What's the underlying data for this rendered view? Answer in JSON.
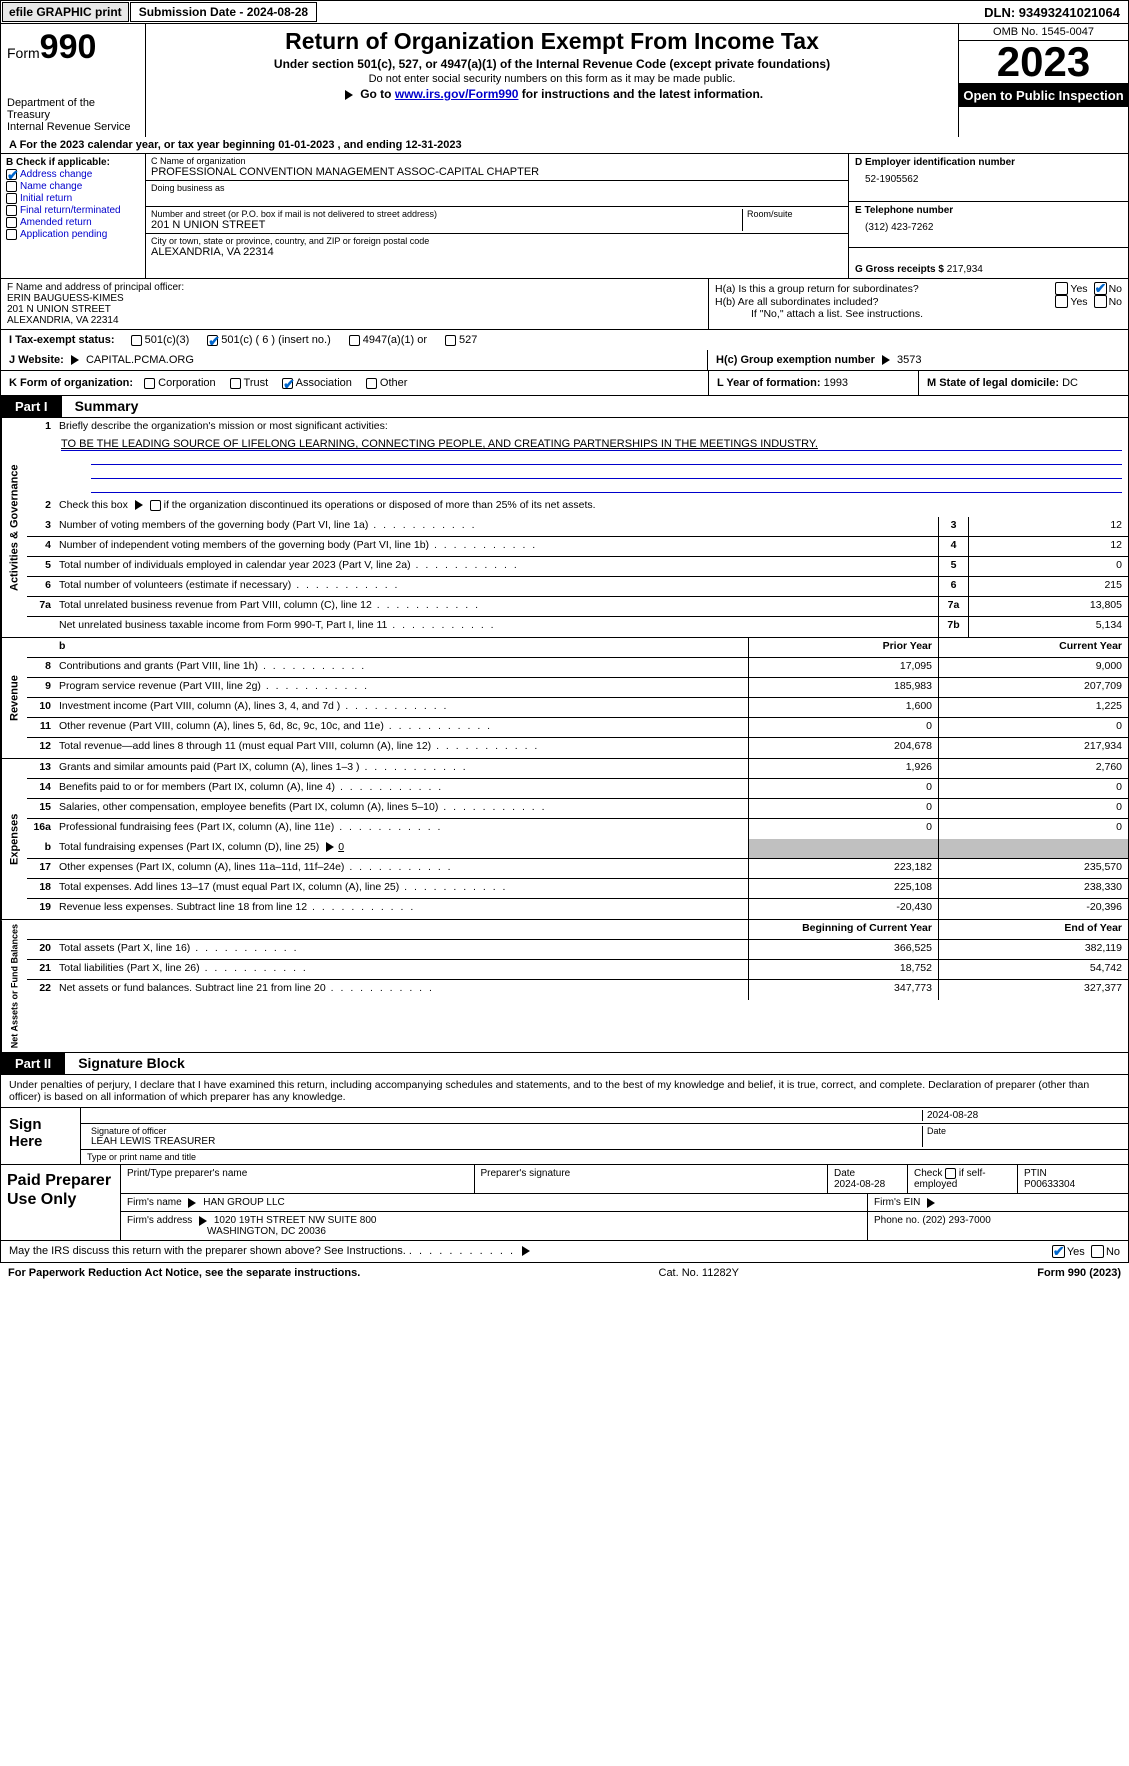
{
  "colors": {
    "link": "#0000cc",
    "check": "#0066cc",
    "black": "#000000",
    "grey": "#c0c0c0"
  },
  "topbar": {
    "efile": "efile GRAPHIC print",
    "submission": "Submission Date - 2024-08-28",
    "dln": "DLN: 93493241021064"
  },
  "header": {
    "form_prefix": "Form",
    "form_num": "990",
    "dept": "Department of the Treasury",
    "irs": "Internal Revenue Service",
    "title": "Return of Organization Exempt From Income Tax",
    "sub1": "Under section 501(c), 527, or 4947(a)(1) of the Internal Revenue Code (except private foundations)",
    "sub2": "Do not enter social security numbers on this form as it may be made public.",
    "sub3_a": "Go to ",
    "sub3_link": "www.irs.gov/Form990",
    "sub3_b": " for instructions and the latest information.",
    "omb": "OMB No. 1545-0047",
    "year": "2023",
    "open": "Open to Public Inspection"
  },
  "row_a": "A For the 2023 calendar year, or tax year beginning 01-01-2023   , and ending 12-31-2023",
  "col_b": {
    "label": "B Check if applicable:",
    "items": [
      {
        "label": "Address change",
        "checked": true
      },
      {
        "label": "Name change",
        "checked": false
      },
      {
        "label": "Initial return",
        "checked": false
      },
      {
        "label": "Final return/terminated",
        "checked": false
      },
      {
        "label": "Amended return",
        "checked": false
      },
      {
        "label": "Application pending",
        "checked": false
      }
    ]
  },
  "col_c": {
    "name_lbl": "C Name of organization",
    "name": "PROFESSIONAL CONVENTION MANAGEMENT ASSOC-CAPITAL CHAPTER",
    "dba_lbl": "Doing business as",
    "dba": "",
    "addr_lbl": "Number and street (or P.O. box if mail is not delivered to street address)",
    "addr": "201 N UNION STREET",
    "room_lbl": "Room/suite",
    "city_lbl": "City or town, state or province, country, and ZIP or foreign postal code",
    "city": "ALEXANDRIA, VA  22314"
  },
  "col_de": {
    "d_lbl": "D Employer identification number",
    "d_val": "52-1905562",
    "e_lbl": "E Telephone number",
    "e_val": "(312) 423-7262",
    "g_lbl": "G Gross receipts $",
    "g_val": "217,934"
  },
  "f": {
    "lbl": "F  Name and address of principal officer:",
    "name": "ERIN BAUGUESS-KIMES",
    "addr1": "201 N UNION STREET",
    "addr2": "ALEXANDRIA, VA  22314"
  },
  "h": {
    "a_lbl": "H(a)  Is this a group return for subordinates?",
    "a_yes": false,
    "a_no": true,
    "b_lbl": "H(b)  Are all subordinates included?",
    "b_yes": false,
    "b_no": false,
    "b_note": "If \"No,\" attach a list. See instructions.",
    "c_lbl": "H(c)  Group exemption number",
    "c_val": "3573"
  },
  "i": {
    "lbl": "I   Tax-exempt status:",
    "opts": [
      {
        "label": "501(c)(3)",
        "checked": false
      },
      {
        "label": "501(c) ( 6 ) (insert no.)",
        "checked": true
      },
      {
        "label": "4947(a)(1) or",
        "checked": false
      },
      {
        "label": "527",
        "checked": false
      }
    ]
  },
  "j": {
    "lbl": "J   Website:",
    "val": "CAPITAL.PCMA.ORG",
    "arrow": true
  },
  "k": {
    "lbl": "K Form of organization:",
    "opts": [
      {
        "label": "Corporation",
        "checked": false
      },
      {
        "label": "Trust",
        "checked": false
      },
      {
        "label": "Association",
        "checked": true
      },
      {
        "label": "Other",
        "checked": false
      }
    ]
  },
  "l": {
    "lbl": "L Year of formation:",
    "val": "1993"
  },
  "m": {
    "lbl": "M State of legal domicile:",
    "val": "DC"
  },
  "part1": {
    "hdr": "Part I",
    "title": "Summary"
  },
  "governance": {
    "label": "Activities & Governance",
    "mission_lbl": "Briefly describe the organization's mission or most significant activities:",
    "mission": "TO BE THE LEADING SOURCE OF LIFELONG LEARNING, CONNECTING PEOPLE, AND CREATING PARTNERSHIPS IN THE MEETINGS INDUSTRY.",
    "line2": "Check this box      if the organization discontinued its operations or disposed of more than 25% of its net assets.",
    "rows": [
      {
        "n": "3",
        "d": "Number of voting members of the governing body (Part VI, line 1a)",
        "box": "3",
        "v": "12"
      },
      {
        "n": "4",
        "d": "Number of independent voting members of the governing body (Part VI, line 1b)",
        "box": "4",
        "v": "12"
      },
      {
        "n": "5",
        "d": "Total number of individuals employed in calendar year 2023 (Part V, line 2a)",
        "box": "5",
        "v": "0"
      },
      {
        "n": "6",
        "d": "Total number of volunteers (estimate if necessary)",
        "box": "6",
        "v": "215"
      },
      {
        "n": "7a",
        "d": "Total unrelated business revenue from Part VIII, column (C), line 12",
        "box": "7a",
        "v": "13,805"
      },
      {
        "n": "",
        "d": "Net unrelated business taxable income from Form 990-T, Part I, line 11",
        "box": "7b",
        "v": "5,134"
      }
    ]
  },
  "revenue": {
    "label": "Revenue",
    "hdr_prior": "Prior Year",
    "hdr_curr": "Current Year",
    "rows": [
      {
        "n": "8",
        "d": "Contributions and grants (Part VIII, line 1h)",
        "p": "17,095",
        "c": "9,000"
      },
      {
        "n": "9",
        "d": "Program service revenue (Part VIII, line 2g)",
        "p": "185,983",
        "c": "207,709"
      },
      {
        "n": "10",
        "d": "Investment income (Part VIII, column (A), lines 3, 4, and 7d )",
        "p": "1,600",
        "c": "1,225"
      },
      {
        "n": "11",
        "d": "Other revenue (Part VIII, column (A), lines 5, 6d, 8c, 9c, 10c, and 11e)",
        "p": "0",
        "c": "0"
      },
      {
        "n": "12",
        "d": "Total revenue—add lines 8 through 11 (must equal Part VIII, column (A), line 12)",
        "p": "204,678",
        "c": "217,934"
      }
    ]
  },
  "expenses": {
    "label": "Expenses",
    "rows": [
      {
        "n": "13",
        "d": "Grants and similar amounts paid (Part IX, column (A), lines 1–3 )",
        "p": "1,926",
        "c": "2,760"
      },
      {
        "n": "14",
        "d": "Benefits paid to or for members (Part IX, column (A), line 4)",
        "p": "0",
        "c": "0"
      },
      {
        "n": "15",
        "d": "Salaries, other compensation, employee benefits (Part IX, column (A), lines 5–10)",
        "p": "0",
        "c": "0"
      },
      {
        "n": "16a",
        "d": "Professional fundraising fees (Part IX, column (A), line 11e)",
        "p": "0",
        "c": "0"
      }
    ],
    "line_b": "Total fundraising expenses (Part IX, column (D), line 25)",
    "line_b_val": "0",
    "rows2": [
      {
        "n": "17",
        "d": "Other expenses (Part IX, column (A), lines 11a–11d, 11f–24e)",
        "p": "223,182",
        "c": "235,570"
      },
      {
        "n": "18",
        "d": "Total expenses. Add lines 13–17 (must equal Part IX, column (A), line 25)",
        "p": "225,108",
        "c": "238,330"
      },
      {
        "n": "19",
        "d": "Revenue less expenses. Subtract line 18 from line 12",
        "p": "-20,430",
        "c": "-20,396"
      }
    ]
  },
  "netassets": {
    "label": "Net Assets or Fund Balances",
    "hdr_beg": "Beginning of Current Year",
    "hdr_end": "End of Year",
    "rows": [
      {
        "n": "20",
        "d": "Total assets (Part X, line 16)",
        "p": "366,525",
        "c": "382,119"
      },
      {
        "n": "21",
        "d": "Total liabilities (Part X, line 26)",
        "p": "18,752",
        "c": "54,742"
      },
      {
        "n": "22",
        "d": "Net assets or fund balances. Subtract line 21 from line 20",
        "p": "347,773",
        "c": "327,377"
      }
    ]
  },
  "part2": {
    "hdr": "Part II",
    "title": "Signature Block"
  },
  "sig_text": "Under penalties of perjury, I declare that I have examined this return, including accompanying schedules and statements, and to the best of my knowledge and belief, it is true, correct, and complete. Declaration of preparer (other than officer) is based on all information of which preparer has any knowledge.",
  "sign": {
    "lbl": "Sign Here",
    "date": "2024-08-28",
    "sig_lbl": "Signature of officer",
    "name": "LEAH LEWIS  TREASURER",
    "name_lbl": "Type or print name and title",
    "date_lbl": "Date"
  },
  "prep": {
    "lbl": "Paid Preparer Use Only",
    "h1": "Print/Type preparer's name",
    "h2": "Preparer's signature",
    "h3": "Date",
    "h3v": "2024-08-28",
    "h4": "Check       if self-employed",
    "h4_checked": false,
    "h5": "PTIN",
    "h5v": "P00633304",
    "firm_lbl": "Firm's name",
    "firm": "HAN GROUP LLC",
    "ein_lbl": "Firm's EIN",
    "addr_lbl": "Firm's address",
    "addr1": "1020 19TH STREET NW SUITE 800",
    "addr2": "WASHINGTON, DC  20036",
    "phone_lbl": "Phone no.",
    "phone": "(202) 293-7000"
  },
  "discuss": {
    "text": "May the IRS discuss this return with the preparer shown above? See Instructions.",
    "yes": true,
    "no": false
  },
  "footer": {
    "left": "For Paperwork Reduction Act Notice, see the separate instructions.",
    "mid": "Cat. No. 11282Y",
    "right_a": "Form ",
    "right_b": "990",
    "right_c": " (2023)"
  }
}
